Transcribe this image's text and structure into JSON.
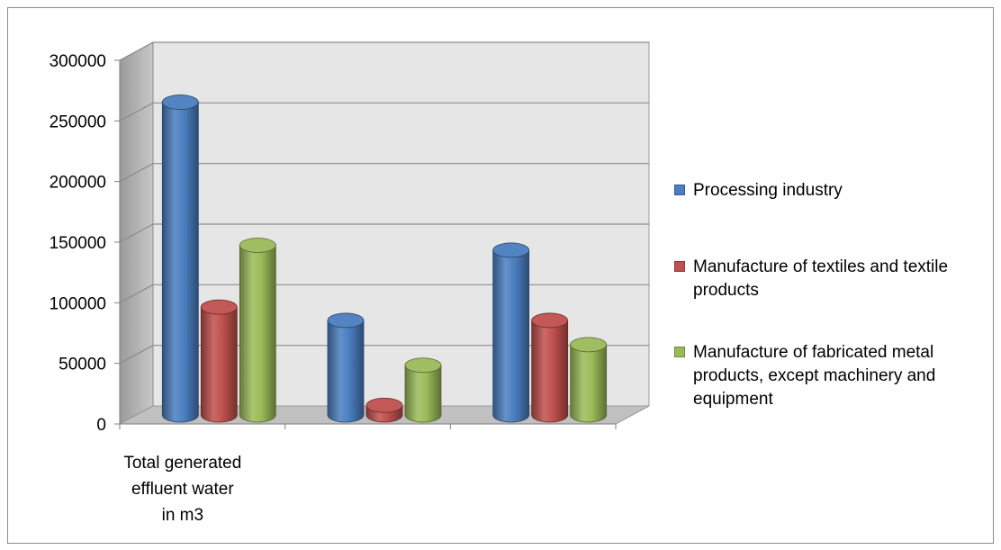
{
  "chart_data": {
    "type": "bar",
    "style": "3d-cylinder",
    "categories": [
      "Total generated effluent water in m3",
      "",
      ""
    ],
    "series": [
      {
        "name": "Processing industry",
        "color": "#4a7ebf",
        "values": [
          258000,
          78000,
          136000
        ]
      },
      {
        "name": "Manufacture of textiles and textile products",
        "color": "#c0504d",
        "values": [
          89000,
          8000,
          78000
        ]
      },
      {
        "name": "Manufacture of fabricated metal products, except machinery and equipment",
        "color": "#9bbb59",
        "values": [
          140000,
          41000,
          58000
        ]
      }
    ],
    "ylim": [
      0,
      300000
    ],
    "yticks": [
      "0",
      "50000",
      "100000",
      "150000",
      "200000",
      "250000",
      "300000"
    ],
    "grid": true,
    "legend_position": "right"
  }
}
